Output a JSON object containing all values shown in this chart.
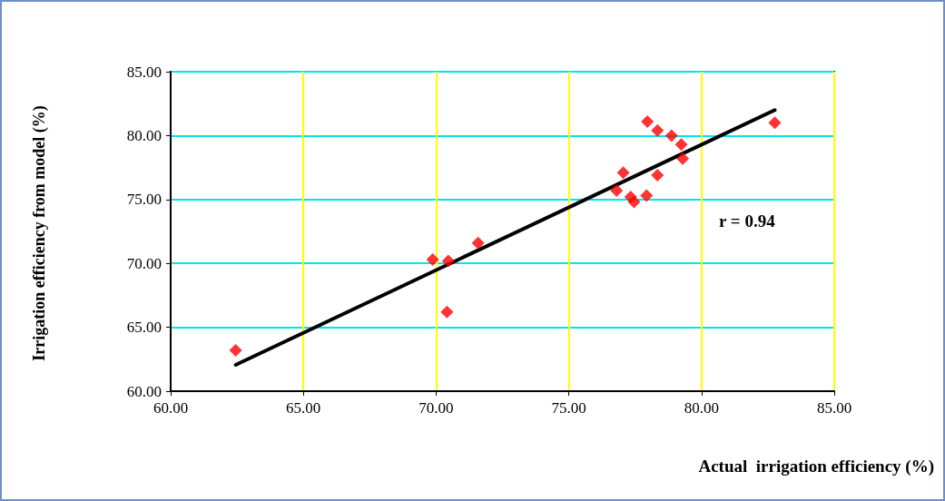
{
  "chart_data": {
    "type": "scatter",
    "xlabel": "Actual  irrigation efficiency (%)",
    "ylabel": "Irrigation efficiency from model (%)",
    "xlim": [
      60,
      85
    ],
    "xticks": [
      {
        "value": 60,
        "label": "60.00"
      },
      {
        "value": 65,
        "label": "65.00"
      },
      {
        "value": 70,
        "label": "70.00"
      },
      {
        "value": 75,
        "label": "75.00"
      },
      {
        "value": 80,
        "label": "80.00"
      },
      {
        "value": 85,
        "label": "85.00"
      }
    ],
    "ylim": [
      60,
      85
    ],
    "yticks": [
      {
        "value": 60,
        "label": "60.00"
      },
      {
        "value": 65,
        "label": "65.00"
      },
      {
        "value": 70,
        "label": "70.00"
      },
      {
        "value": 75,
        "label": "75.00"
      },
      {
        "value": 80,
        "label": "80.00"
      },
      {
        "value": 85,
        "label": "85.00"
      }
    ],
    "grid": true,
    "marker": "diamond",
    "annotations": [
      "r = 0.94"
    ],
    "series": [
      {
        "color": "#ff0000",
        "x": [
          62.45,
          69.87,
          70.46,
          70.41,
          71.58,
          76.8,
          77.05,
          77.33,
          77.46,
          77.93,
          77.96,
          78.34,
          78.34,
          78.87,
          79.24,
          79.29,
          82.76
        ],
        "values": [
          63.2,
          70.3,
          70.2,
          66.2,
          71.6,
          75.7,
          77.1,
          75.2,
          74.8,
          75.3,
          81.1,
          76.9,
          80.4,
          80.0,
          79.3,
          78.2,
          81.0
        ]
      },
      {
        "type": "line",
        "color": "#000000",
        "marker": "none",
        "line_style": "solid",
        "x": [
          62.45,
          82.76
        ],
        "values": [
          62.06,
          82.0
        ]
      }
    ]
  }
}
